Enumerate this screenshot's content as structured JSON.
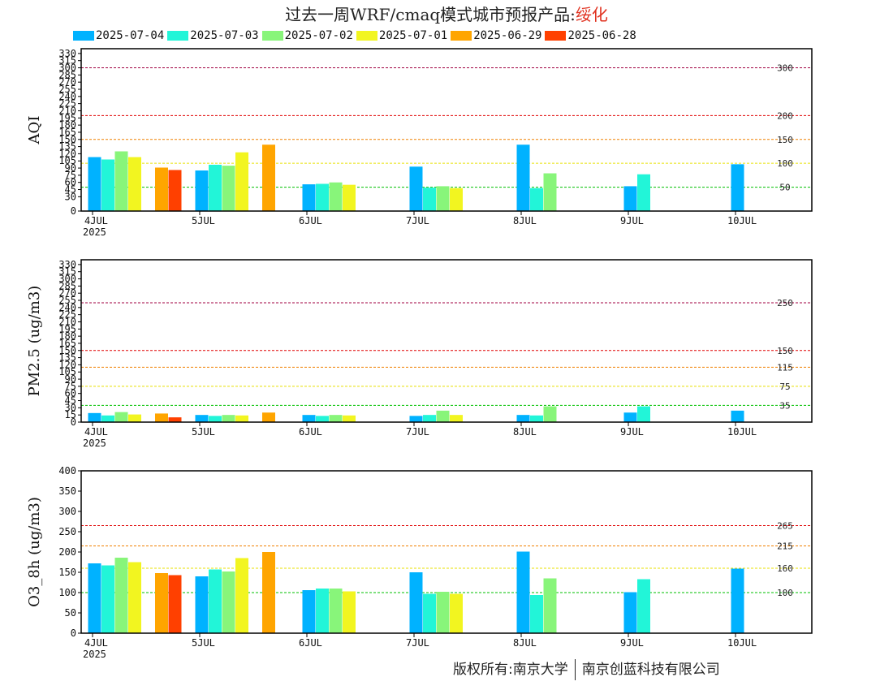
{
  "page": {
    "title_main": "过去一周WRF/cmaq模式城市预报产品:",
    "title_location": "绥化",
    "footer_left": "版权所有:南京大学",
    "footer_right": "南京创蓝科技有限公司"
  },
  "colors": {
    "2025-07-04": "#00b2ff",
    "2025-07-03": "#22f5d8",
    "2025-07-02": "#88f57a",
    "2025-07-01": "#f2f520",
    "2025-06-29": "#ffa500",
    "2025-06-28": "#ff4000"
  },
  "legend": [
    {
      "label": "2025-07-04",
      "color": "#00b2ff"
    },
    {
      "label": "2025-07-03",
      "color": "#22f5d8"
    },
    {
      "label": "2025-07-02",
      "color": "#88f57a"
    },
    {
      "label": "2025-07-01",
      "color": "#f2f520"
    },
    {
      "label": "2025-06-29",
      "color": "#ffa500"
    },
    {
      "label": "2025-06-28",
      "color": "#ff4000"
    }
  ],
  "chart_data": [
    {
      "type": "bar",
      "ylabel": "AQI",
      "ylim": [
        0,
        340
      ],
      "yticks": [
        0,
        30,
        45,
        60,
        75,
        90,
        105,
        120,
        135,
        150,
        165,
        180,
        195,
        210,
        225,
        240,
        255,
        270,
        285,
        300,
        315,
        330
      ],
      "ytick_labels": [
        "0",
        "30",
        "45",
        "60",
        "75",
        "90",
        "105",
        "120",
        "135",
        "150",
        "165",
        "180",
        "195",
        "210",
        "225",
        "240",
        "255",
        "270",
        "285",
        "300",
        "315",
        "330"
      ],
      "xticks": [
        "4JUL",
        "5JUL",
        "6JUL",
        "7JUL",
        "8JUL",
        "9JUL",
        "10JUL"
      ],
      "x_sublabel": "2025",
      "thresholds": [
        {
          "value": 50,
          "label": "50",
          "color": "#00c000"
        },
        {
          "value": 100,
          "label": "100",
          "color": "#e8e000"
        },
        {
          "value": 150,
          "label": "150",
          "color": "#f08000"
        },
        {
          "value": 200,
          "label": "200",
          "color": "#e00000"
        },
        {
          "value": 300,
          "label": "300",
          "color": "#a00040"
        }
      ],
      "bars": [
        {
          "series": "2025-07-04",
          "pos": 0,
          "value": 113
        },
        {
          "series": "2025-07-03",
          "pos": 1,
          "value": 108
        },
        {
          "series": "2025-07-02",
          "pos": 2,
          "value": 125
        },
        {
          "series": "2025-07-01",
          "pos": 3,
          "value": 113
        },
        {
          "series": "2025-06-29",
          "pos": 5,
          "value": 91
        },
        {
          "series": "2025-06-28",
          "pos": 6,
          "value": 86
        },
        {
          "series": "2025-07-04",
          "pos": 8,
          "value": 85
        },
        {
          "series": "2025-07-03",
          "pos": 9,
          "value": 97
        },
        {
          "series": "2025-07-02",
          "pos": 10,
          "value": 95
        },
        {
          "series": "2025-07-01",
          "pos": 11,
          "value": 123
        },
        {
          "series": "2025-06-29",
          "pos": 13,
          "value": 139
        },
        {
          "series": "2025-07-04",
          "pos": 16,
          "value": 56
        },
        {
          "series": "2025-07-03",
          "pos": 17,
          "value": 57
        },
        {
          "series": "2025-07-02",
          "pos": 18,
          "value": 60
        },
        {
          "series": "2025-07-01",
          "pos": 19,
          "value": 55
        },
        {
          "series": "2025-07-04",
          "pos": 24,
          "value": 93
        },
        {
          "series": "2025-07-03",
          "pos": 25,
          "value": 49
        },
        {
          "series": "2025-07-02",
          "pos": 26,
          "value": 52
        },
        {
          "series": "2025-07-01",
          "pos": 27,
          "value": 48
        },
        {
          "series": "2025-07-04",
          "pos": 32,
          "value": 139
        },
        {
          "series": "2025-07-03",
          "pos": 33,
          "value": 48
        },
        {
          "series": "2025-07-02",
          "pos": 34,
          "value": 79
        },
        {
          "series": "2025-07-04",
          "pos": 40,
          "value": 52
        },
        {
          "series": "2025-07-03",
          "pos": 41,
          "value": 77
        },
        {
          "series": "2025-07-04",
          "pos": 48,
          "value": 98
        }
      ]
    },
    {
      "type": "bar",
      "ylabel": "PM2.5 (ug/m3)",
      "ylim": [
        0,
        340
      ],
      "yticks": [
        0,
        15,
        30,
        45,
        60,
        75,
        90,
        105,
        120,
        135,
        150,
        165,
        180,
        195,
        210,
        225,
        240,
        255,
        270,
        285,
        300,
        315,
        330
      ],
      "ytick_labels": [
        "0",
        "15",
        "30",
        "45",
        "60",
        "75",
        "90",
        "105",
        "120",
        "135",
        "150",
        "165",
        "180",
        "195",
        "210",
        "225",
        "240",
        "255",
        "270",
        "285",
        "300",
        "315",
        "330"
      ],
      "xticks": [
        "4JUL",
        "5JUL",
        "6JUL",
        "7JUL",
        "8JUL",
        "9JUL",
        "10JUL"
      ],
      "x_sublabel": "2025",
      "thresholds": [
        {
          "value": 35,
          "label": "35",
          "color": "#00c000"
        },
        {
          "value": 75,
          "label": "75",
          "color": "#e8e000"
        },
        {
          "value": 115,
          "label": "115",
          "color": "#f08000"
        },
        {
          "value": 150,
          "label": "150",
          "color": "#e00000"
        },
        {
          "value": 250,
          "label": "250",
          "color": "#a00040"
        }
      ],
      "bars": [
        {
          "series": "2025-07-04",
          "pos": 0,
          "value": 19
        },
        {
          "series": "2025-07-03",
          "pos": 1,
          "value": 14
        },
        {
          "series": "2025-07-02",
          "pos": 2,
          "value": 21
        },
        {
          "series": "2025-07-01",
          "pos": 3,
          "value": 16
        },
        {
          "series": "2025-06-29",
          "pos": 5,
          "value": 18
        },
        {
          "series": "2025-06-28",
          "pos": 6,
          "value": 10
        },
        {
          "series": "2025-07-04",
          "pos": 8,
          "value": 15
        },
        {
          "series": "2025-07-03",
          "pos": 9,
          "value": 13
        },
        {
          "series": "2025-07-02",
          "pos": 10,
          "value": 15
        },
        {
          "series": "2025-07-01",
          "pos": 11,
          "value": 14
        },
        {
          "series": "2025-06-29",
          "pos": 13,
          "value": 20
        },
        {
          "series": "2025-07-04",
          "pos": 16,
          "value": 15
        },
        {
          "series": "2025-07-03",
          "pos": 17,
          "value": 13
        },
        {
          "series": "2025-07-02",
          "pos": 18,
          "value": 15
        },
        {
          "series": "2025-07-01",
          "pos": 19,
          "value": 14
        },
        {
          "series": "2025-07-04",
          "pos": 24,
          "value": 13
        },
        {
          "series": "2025-07-03",
          "pos": 25,
          "value": 15
        },
        {
          "series": "2025-07-02",
          "pos": 26,
          "value": 24
        },
        {
          "series": "2025-07-01",
          "pos": 27,
          "value": 15
        },
        {
          "series": "2025-07-04",
          "pos": 32,
          "value": 15
        },
        {
          "series": "2025-07-03",
          "pos": 33,
          "value": 14
        },
        {
          "series": "2025-07-02",
          "pos": 34,
          "value": 33
        },
        {
          "series": "2025-07-04",
          "pos": 40,
          "value": 20
        },
        {
          "series": "2025-07-03",
          "pos": 41,
          "value": 33
        },
        {
          "series": "2025-07-04",
          "pos": 48,
          "value": 24
        }
      ]
    },
    {
      "type": "bar",
      "ylabel": "O3_8h (ug/m3)",
      "ylim": [
        0,
        400
      ],
      "yticks": [
        0,
        50,
        100,
        150,
        200,
        250,
        300,
        350,
        400
      ],
      "ytick_labels": [
        "0",
        "50",
        "100",
        "150",
        "200",
        "250",
        "300",
        "350",
        "400"
      ],
      "xticks": [
        "4JUL",
        "5JUL",
        "6JUL",
        "7JUL",
        "8JUL",
        "9JUL",
        "10JUL"
      ],
      "x_sublabel": "2025",
      "thresholds": [
        {
          "value": 100,
          "label": "100",
          "color": "#00c000"
        },
        {
          "value": 160,
          "label": "160",
          "color": "#e8e000"
        },
        {
          "value": 215,
          "label": "215",
          "color": "#f08000"
        },
        {
          "value": 265,
          "label": "265",
          "color": "#e00000"
        }
      ],
      "bars": [
        {
          "series": "2025-07-04",
          "pos": 0,
          "value": 172
        },
        {
          "series": "2025-07-03",
          "pos": 1,
          "value": 167
        },
        {
          "series": "2025-07-02",
          "pos": 2,
          "value": 186
        },
        {
          "series": "2025-07-01",
          "pos": 3,
          "value": 175
        },
        {
          "series": "2025-06-29",
          "pos": 5,
          "value": 148
        },
        {
          "series": "2025-06-28",
          "pos": 6,
          "value": 143
        },
        {
          "series": "2025-07-04",
          "pos": 8,
          "value": 140
        },
        {
          "series": "2025-07-03",
          "pos": 9,
          "value": 157
        },
        {
          "series": "2025-07-02",
          "pos": 10,
          "value": 152
        },
        {
          "series": "2025-07-01",
          "pos": 11,
          "value": 185
        },
        {
          "series": "2025-06-29",
          "pos": 13,
          "value": 200
        },
        {
          "series": "2025-07-04",
          "pos": 16,
          "value": 106
        },
        {
          "series": "2025-07-03",
          "pos": 17,
          "value": 110
        },
        {
          "series": "2025-07-02",
          "pos": 18,
          "value": 110
        },
        {
          "series": "2025-07-01",
          "pos": 19,
          "value": 103
        },
        {
          "series": "2025-07-04",
          "pos": 24,
          "value": 150
        },
        {
          "series": "2025-07-03",
          "pos": 25,
          "value": 97
        },
        {
          "series": "2025-07-02",
          "pos": 26,
          "value": 102
        },
        {
          "series": "2025-07-01",
          "pos": 27,
          "value": 97
        },
        {
          "series": "2025-07-04",
          "pos": 32,
          "value": 201
        },
        {
          "series": "2025-07-03",
          "pos": 33,
          "value": 94
        },
        {
          "series": "2025-07-02",
          "pos": 34,
          "value": 135
        },
        {
          "series": "2025-07-04",
          "pos": 40,
          "value": 101
        },
        {
          "series": "2025-07-03",
          "pos": 41,
          "value": 133
        },
        {
          "series": "2025-07-04",
          "pos": 48,
          "value": 159
        }
      ]
    }
  ]
}
